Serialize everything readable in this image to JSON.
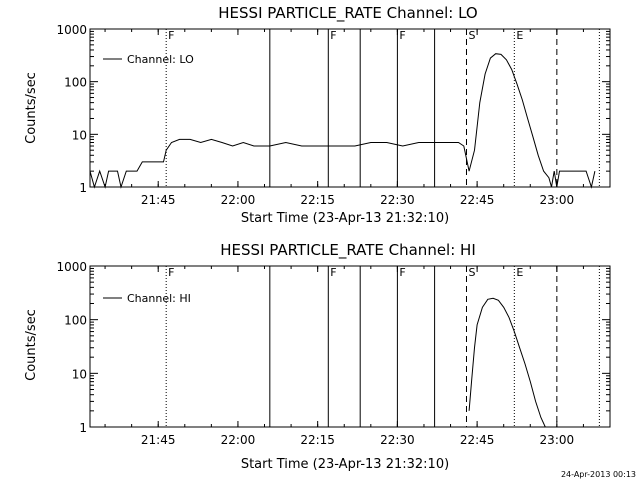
{
  "footer": {
    "timestamp": "24-Apr-2013 00:13"
  },
  "chart_data": [
    {
      "type": "line",
      "title": "HESSI PARTICLE_RATE Channel: LO",
      "xlabel": "Start Time (23-Apr-13 21:32:10)",
      "ylabel": "Counts/sec",
      "yscale": "log",
      "ylim": [
        1,
        1000
      ],
      "xlim": [
        "21:32:10",
        "23:10:00"
      ],
      "yticks": [
        "1",
        "10",
        "100",
        "1000"
      ],
      "xticks": [
        "21:45",
        "22:00",
        "22:15",
        "22:30",
        "22:45",
        "23:00"
      ],
      "legend": {
        "position": "top-left",
        "entries": [
          "Channel: LO"
        ]
      },
      "grid": false,
      "markers": [
        {
          "time": "21:46:30",
          "style": "dotted",
          "label": "F"
        },
        {
          "time": "22:06:00",
          "style": "solid",
          "label": ""
        },
        {
          "time": "22:17:00",
          "style": "solid",
          "label": "F"
        },
        {
          "time": "22:23:00",
          "style": "solid",
          "label": ""
        },
        {
          "time": "22:30:00",
          "style": "solid",
          "label": "F"
        },
        {
          "time": "22:37:00",
          "style": "solid",
          "label": ""
        },
        {
          "time": "22:43:00",
          "style": "dashed",
          "label": "S"
        },
        {
          "time": "22:52:00",
          "style": "dotted",
          "label": "E"
        },
        {
          "time": "23:00:00",
          "style": "dashed",
          "label": ""
        },
        {
          "time": "23:08:00",
          "style": "dotted",
          "label": ""
        }
      ],
      "series": [
        {
          "x": [
            "21:32:10",
            "21:33:00",
            "21:34:00",
            "21:35:00",
            "21:35:40",
            "21:36:30",
            "21:37:20",
            "21:38:00",
            "21:39:00",
            "21:40:00",
            "21:41:00",
            "21:42:00",
            "21:43:00",
            "21:44:00",
            "21:45:00",
            "21:46:00",
            "21:46:30",
            "21:47:30",
            "21:49:00",
            "21:51:00",
            "21:53:00",
            "21:55:00",
            "21:57:00",
            "21:59:00",
            "22:01:00",
            "22:03:00",
            "22:06:00",
            "22:09:00",
            "22:12:00",
            "22:15:00",
            "22:17:00",
            "22:19:00",
            "22:22:00",
            "22:25:00",
            "22:28:00",
            "22:31:00",
            "22:34:00",
            "22:37:00",
            "22:40:00",
            "22:41:30",
            "22:42:30",
            "22:43:30",
            "22:44:30",
            "22:45:30",
            "22:46:30",
            "22:47:30",
            "22:48:30",
            "22:49:30",
            "22:50:30",
            "22:51:30",
            "22:52:30",
            "22:53:30",
            "22:54:30",
            "22:55:30",
            "22:56:30",
            "22:57:30",
            "22:58:30",
            "22:59:00",
            "22:59:30",
            "23:00:00",
            "23:00:30",
            "23:01:30",
            "23:02:30",
            "23:03:30",
            "23:04:30",
            "23:05:30",
            "23:06:30",
            "23:07:10"
          ],
          "y": [
            2,
            1,
            2,
            1,
            2,
            2,
            2,
            1,
            2,
            2,
            2,
            3,
            3,
            3,
            3,
            3,
            5,
            7,
            8,
            8,
            7,
            8,
            7,
            6,
            7,
            6,
            6,
            7,
            6,
            6,
            6,
            6,
            6,
            7,
            7,
            6,
            7,
            7,
            7,
            7,
            6,
            2,
            5,
            40,
            140,
            280,
            340,
            330,
            260,
            170,
            90,
            45,
            20,
            9,
            4,
            2,
            1.5,
            1,
            2,
            1,
            2,
            2,
            2,
            2,
            2,
            2,
            1,
            2
          ]
        }
      ]
    },
    {
      "type": "line",
      "title": "HESSI PARTICLE_RATE Channel: HI",
      "xlabel": "Start Time (23-Apr-13 21:32:10)",
      "ylabel": "Counts/sec",
      "yscale": "log",
      "ylim": [
        1,
        1000
      ],
      "xlim": [
        "21:32:10",
        "23:10:00"
      ],
      "yticks": [
        "1",
        "10",
        "100",
        "1000"
      ],
      "xticks": [
        "21:45",
        "22:00",
        "22:15",
        "22:30",
        "22:45",
        "23:00"
      ],
      "legend": {
        "position": "top-left",
        "entries": [
          "Channel: HI"
        ]
      },
      "grid": false,
      "markers": [
        {
          "time": "21:46:30",
          "style": "dotted",
          "label": "F"
        },
        {
          "time": "22:06:00",
          "style": "solid",
          "label": ""
        },
        {
          "time": "22:17:00",
          "style": "solid",
          "label": "F"
        },
        {
          "time": "22:23:00",
          "style": "solid",
          "label": ""
        },
        {
          "time": "22:30:00",
          "style": "solid",
          "label": "F"
        },
        {
          "time": "22:37:00",
          "style": "solid",
          "label": ""
        },
        {
          "time": "22:43:00",
          "style": "dashed",
          "label": "S"
        },
        {
          "time": "22:52:00",
          "style": "dotted",
          "label": "E"
        },
        {
          "time": "23:00:00",
          "style": "dashed",
          "label": ""
        },
        {
          "time": "23:08:00",
          "style": "dotted",
          "label": ""
        }
      ],
      "series": [
        {
          "x": [
            "22:43:30",
            "22:44:00",
            "22:44:30",
            "22:45:00",
            "22:46:00",
            "22:47:00",
            "22:48:00",
            "22:49:00",
            "22:50:00",
            "22:51:00",
            "22:52:00",
            "22:53:00",
            "22:54:00",
            "22:55:00",
            "22:56:00",
            "22:57:00",
            "22:57:50"
          ],
          "y": [
            2,
            8,
            30,
            80,
            170,
            240,
            250,
            230,
            170,
            110,
            60,
            30,
            15,
            7,
            3,
            1.5,
            1
          ]
        }
      ]
    }
  ]
}
